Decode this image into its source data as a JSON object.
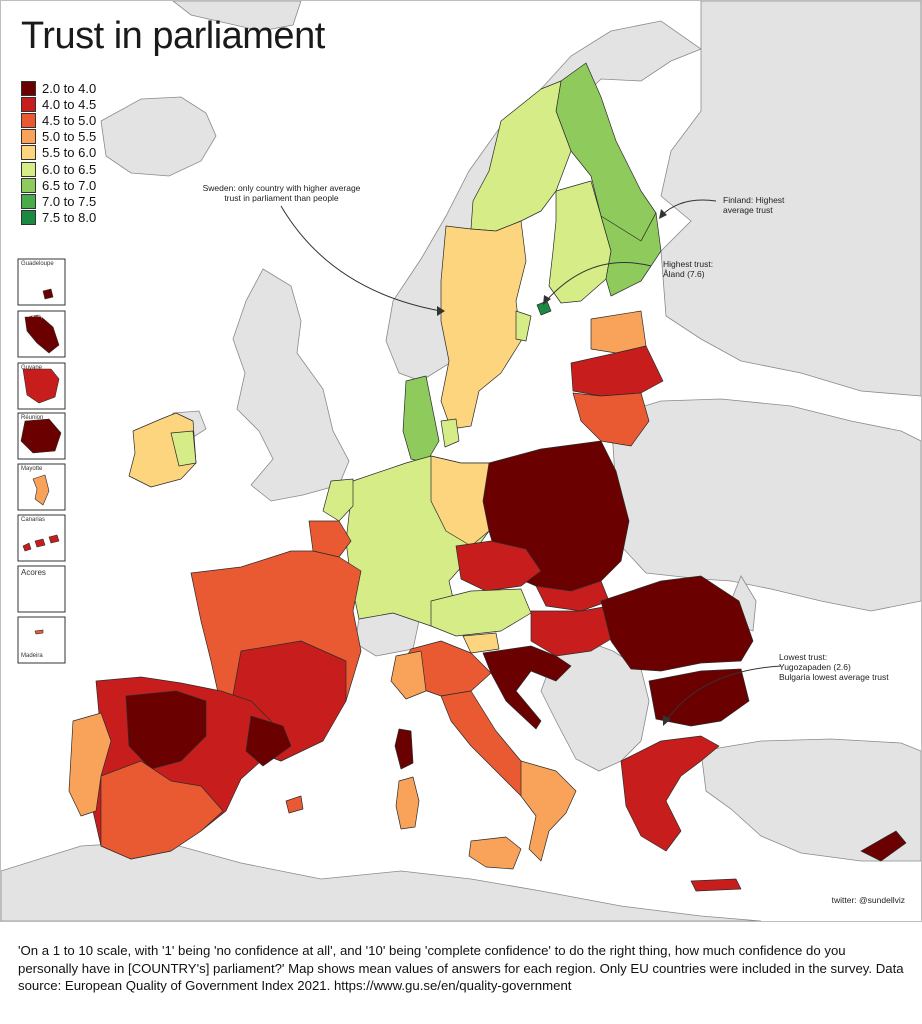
{
  "title": "Trust in parliament",
  "legend": [
    {
      "label": "2.0 to 4.0",
      "color": "#6b0000"
    },
    {
      "label": "4.0 to 4.5",
      "color": "#c71e1d"
    },
    {
      "label": "4.5 to 5.0",
      "color": "#ea5a32"
    },
    {
      "label": "5.0 to 5.5",
      "color": "#f9a25a"
    },
    {
      "label": "5.5 to 6.0",
      "color": "#fdd57f"
    },
    {
      "label": "6.0 to 6.5",
      "color": "#d5ec87"
    },
    {
      "label": "6.5 to 7.0",
      "color": "#8ecb5c"
    },
    {
      "label": "7.0 to 7.5",
      "color": "#49ac4b"
    },
    {
      "label": "7.5 to 8.0",
      "color": "#1a8a43"
    }
  ],
  "annotations": {
    "sweden": "Sweden: only country with higher average trust in parliament than people",
    "finland": "Finland: Highest average trust",
    "highest": "Highest trust: Åland (7.6)",
    "lowest_1": "Lowest trust:",
    "lowest_2": "Yugozapaden (2.6)",
    "lowest_3": "Bulgaria lowest average trust"
  },
  "insets": [
    "Guadeloupe",
    "Martinique",
    "Guyane",
    "Réunion",
    "Mayotte",
    "Canarias",
    "Acores",
    "Madeira"
  ],
  "credit": "twitter: @sundellviz",
  "caption": "'On a 1 to 10 scale, with '1' being 'no confidence at all', and '10' being 'complete confidence' to do the right thing, how much confidence do you personally have in [COUNTRY's] parliament?' Map shows mean values of answers for each region. Only EU countries were included in the survey. Data source: European Quality of Government Index 2021. https://www.gu.se/en/quality-government",
  "colors": {
    "non_eu_land": "#e3e3e3",
    "sea": "#ffffff",
    "border": "#2b2b2b"
  }
}
